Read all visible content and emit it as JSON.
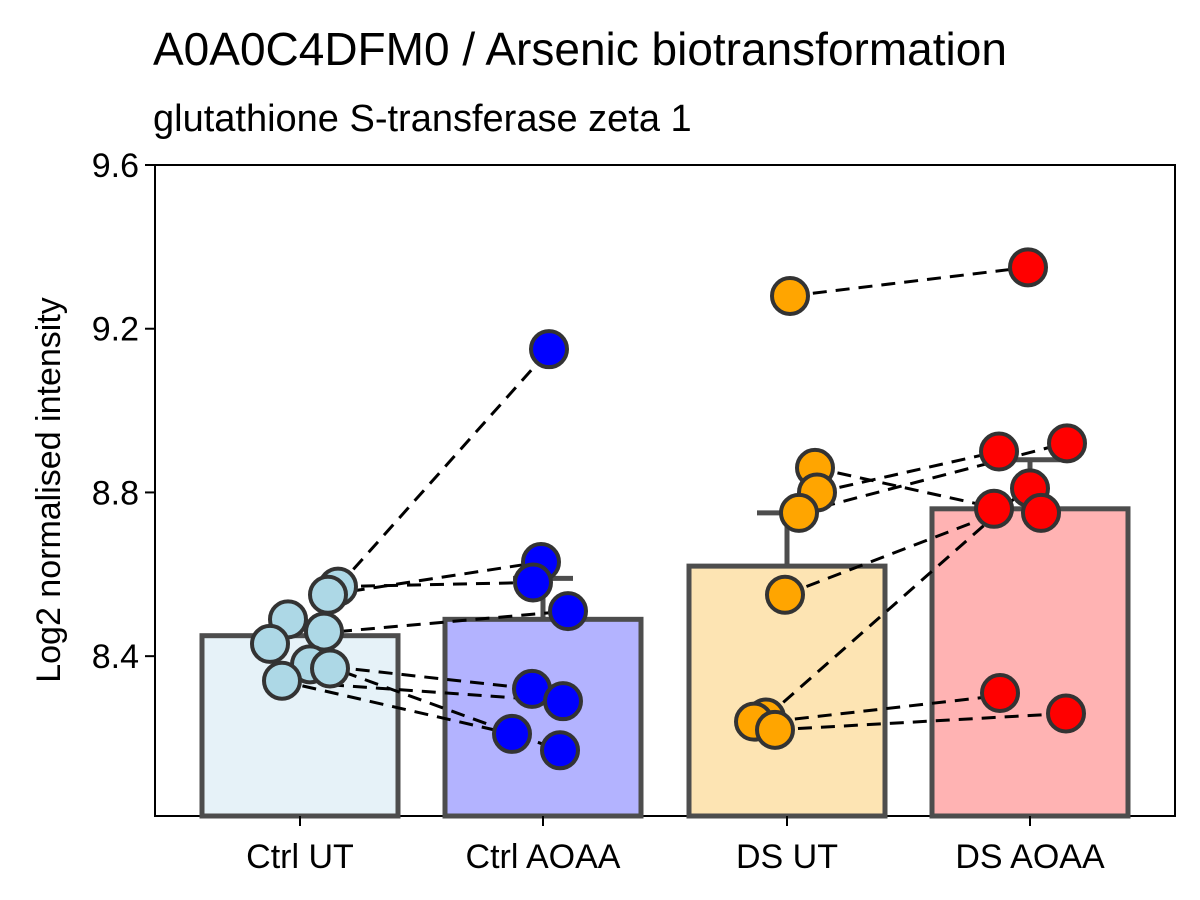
{
  "chart_data": {
    "type": "bar",
    "title": "A0A0C4DFM0 / Arsenic biotransformation",
    "subtitle": "glutathione S-transferase zeta 1",
    "xlabel": "",
    "ylabel": "Log2 normalised intensity",
    "ylim": [
      8.0,
      9.6
    ],
    "yticks": [
      "8.4",
      "8.8",
      "9.2",
      "9.6"
    ],
    "categories": [
      "Ctrl UT",
      "Ctrl AOAA",
      "DS UT",
      "DS AOAA"
    ],
    "means": [
      8.45,
      8.49,
      8.62,
      8.76
    ],
    "errors": [
      0.0,
      0.1,
      0.13,
      0.12
    ],
    "bar_fill_colors": [
      "#e6f2f8",
      "#b3b3ff",
      "#fde4b3",
      "#ffb3b3"
    ],
    "point_colors": [
      "#add8e6",
      "#0000ff",
      "#ffa500",
      "#ff0000"
    ],
    "points": [
      [
        8.57,
        8.55,
        8.49,
        8.46,
        8.43,
        8.38,
        8.37,
        8.34
      ],
      [
        9.15,
        8.63,
        8.58,
        8.51,
        8.32,
        8.29,
        8.21,
        8.17
      ],
      [
        9.28,
        8.86,
        8.8,
        8.75,
        8.55,
        8.25,
        8.24,
        8.22
      ],
      [
        9.35,
        8.92,
        8.9,
        8.81,
        8.76,
        8.75,
        8.31,
        8.26
      ]
    ],
    "pairs": [
      [
        8.57,
        9.15
      ],
      [
        8.55,
        8.63
      ],
      [
        8.57,
        8.58
      ],
      [
        8.46,
        8.51
      ],
      [
        8.38,
        8.32
      ],
      [
        8.34,
        8.21
      ],
      [
        8.33,
        8.29
      ],
      [
        8.4,
        8.17
      ],
      [
        9.28,
        9.35
      ],
      [
        8.86,
        8.76
      ],
      [
        8.8,
        8.9
      ],
      [
        8.75,
        8.92
      ],
      [
        8.55,
        8.75
      ],
      [
        8.25,
        8.81
      ],
      [
        8.24,
        8.31
      ],
      [
        8.22,
        8.26
      ]
    ],
    "grid": false,
    "legend": "none"
  }
}
